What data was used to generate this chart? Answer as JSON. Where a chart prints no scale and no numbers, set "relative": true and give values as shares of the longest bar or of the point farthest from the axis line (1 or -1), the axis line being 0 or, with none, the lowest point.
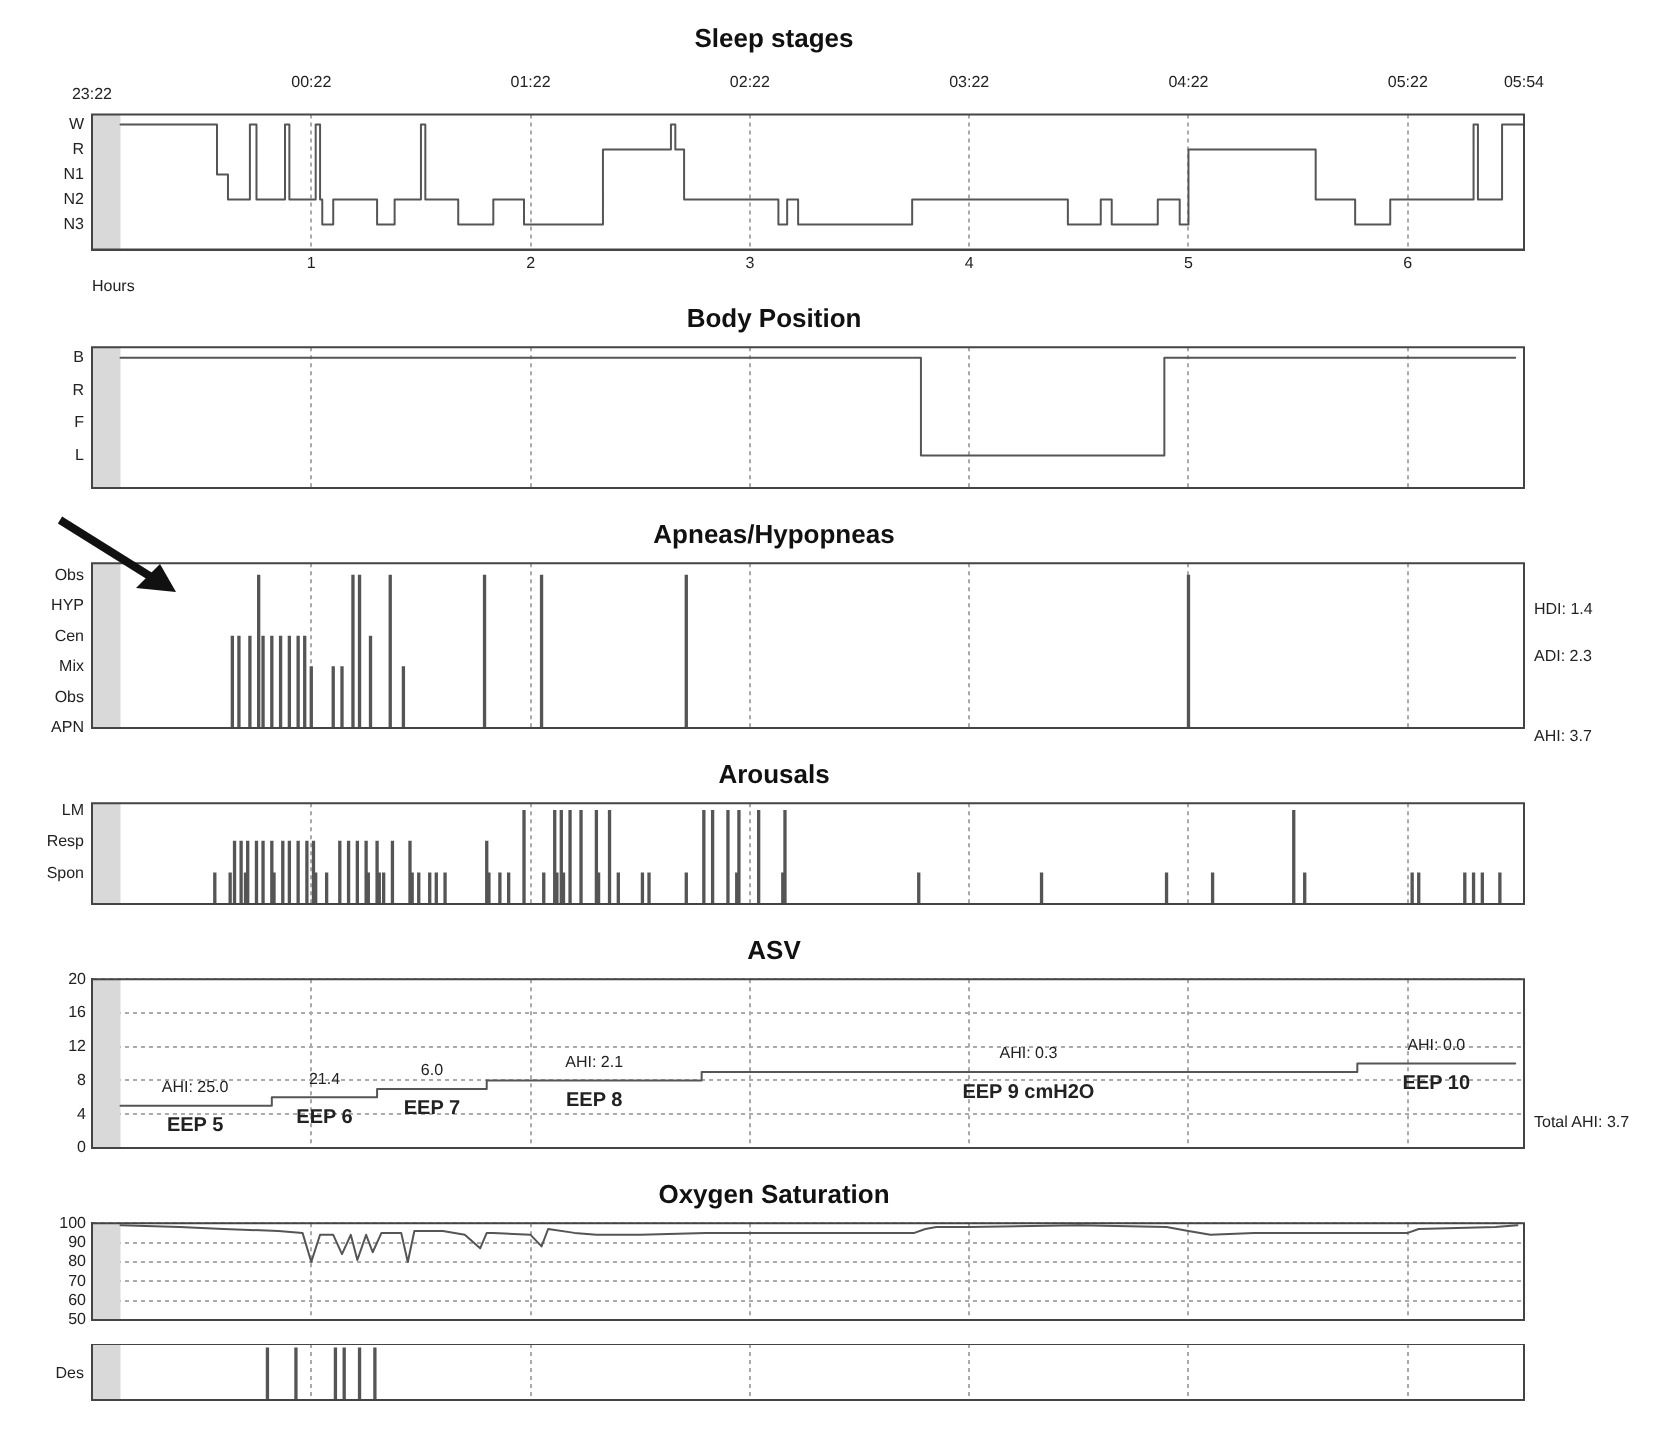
{
  "chart_data": [
    {
      "type": "step",
      "title": "Sleep stages",
      "xlabel": "Hours",
      "xlim": [
        0,
        6.53
      ],
      "xticks": [
        1,
        2,
        3,
        4,
        5,
        6
      ],
      "x2lim": [
        -0.63,
        5.9
      ],
      "x2ticks": [
        {
          "value": 0.37,
          "label": "00:22"
        },
        {
          "value": 1.37,
          "label": "01:22"
        },
        {
          "value": 2.37,
          "label": "02:22"
        },
        {
          "value": 3.37,
          "label": "03:22"
        },
        {
          "value": 4.37,
          "label": "04:22"
        },
        {
          "value": 5.37,
          "label": "05:22"
        },
        {
          "value": 5.9,
          "label": "05:54"
        }
      ],
      "relative": true,
      "grid": "x",
      "bands": [
        {
          "axis": "x",
          "from": 0,
          "to": 0.13,
          "color": "#d9d9d9"
        }
      ],
      "annotations": [
        "W",
        "R",
        "N1",
        "N2",
        "N3",
        "23:22"
      ],
      "series": [
        {
          "color": "#555555",
          "x": [
            0.13,
            0.57,
            0.62,
            0.72,
            0.75,
            0.88,
            0.9,
            1.02,
            1.04,
            1.05,
            1.1,
            1.3,
            1.38,
            1.5,
            1.52,
            1.67,
            1.83,
            1.97,
            2.33,
            2.64,
            2.66,
            2.7,
            3.13,
            3.17,
            3.22,
            3.74,
            4.45,
            4.6,
            4.65,
            4.86,
            4.96,
            5.0,
            5.58,
            5.76,
            5.92,
            6.3,
            6.32,
            6.43,
            6.53
          ],
          "values": [
            1,
            0.6,
            0.4,
            1,
            0.4,
            1,
            0.4,
            1,
            0.4,
            0.2,
            0.4,
            0.2,
            0.4,
            1,
            0.4,
            0.2,
            0.4,
            0.2,
            0.8,
            1,
            0.8,
            0.4,
            0.2,
            0.4,
            0.2,
            0.4,
            0.2,
            0.4,
            0.2,
            0.4,
            0.2,
            0.8,
            0.4,
            0.2,
            0.4,
            1,
            0.4,
            1,
            1
          ]
        }
      ]
    },
    {
      "type": "step",
      "title": "Body Position",
      "xlim": [
        0,
        6.53
      ],
      "xticks": [
        1,
        2,
        3,
        4,
        5,
        6
      ],
      "relative": true,
      "grid": "x",
      "tick_labels": false,
      "bands": [
        {
          "axis": "x",
          "from": 0,
          "to": 0.13,
          "color": "#d9d9d9"
        }
      ],
      "annotations": [
        "B",
        "R",
        "F",
        "L"
      ],
      "series": [
        {
          "color": "#555555",
          "x": [
            0.13,
            3.78,
            4.89,
            6.49
          ],
          "values": [
            1,
            0.25,
            1,
            1
          ]
        }
      ]
    },
    {
      "type": "bar",
      "title": "Apneas/Hypopneas",
      "xlim": [
        0,
        6.53
      ],
      "xticks": [
        1,
        2,
        3,
        4,
        5,
        6
      ],
      "relative": true,
      "grid": "x",
      "tick_labels": false,
      "bands": [
        {
          "axis": "x",
          "from": 0,
          "to": 0.13,
          "color": "#d9d9d9"
        }
      ],
      "annotations": [
        "Obs",
        "HYP",
        "Cen",
        "Mix",
        "Obs",
        "APN",
        "HDI: 1.4",
        "ADI: 2.3",
        "AHI: 3.7"
      ],
      "color": "#555555",
      "x": [
        0.64,
        0.67,
        0.72,
        0.76,
        0.78,
        0.82,
        0.86,
        0.9,
        0.94,
        0.97,
        1.0,
        1.1,
        1.14,
        1.19,
        1.22,
        1.27,
        1.36,
        1.42,
        1.79,
        2.05,
        2.71,
        5.0
      ],
      "values": [
        0.6,
        0.6,
        0.6,
        1,
        0.6,
        0.6,
        0.6,
        0.6,
        0.6,
        0.6,
        0.4,
        0.4,
        0.4,
        1,
        1,
        0.6,
        1,
        0.4,
        1,
        1,
        1,
        1
      ]
    },
    {
      "type": "bar",
      "title": "Arousals",
      "xlim": [
        0,
        6.53
      ],
      "xticks": [
        1,
        2,
        3,
        4,
        5,
        6
      ],
      "relative": true,
      "grid": "x",
      "tick_labels": false,
      "bands": [
        {
          "axis": "x",
          "from": 0,
          "to": 0.13,
          "color": "#d9d9d9"
        }
      ],
      "annotations": [
        "LM",
        "Resp",
        "Spon"
      ],
      "color": "#555555",
      "x": [
        0.56,
        0.63,
        0.65,
        0.68,
        0.7,
        0.71,
        0.75,
        0.78,
        0.82,
        0.83,
        0.87,
        0.9,
        0.94,
        0.98,
        1.01,
        1.02,
        1.07,
        1.13,
        1.17,
        1.21,
        1.25,
        1.26,
        1.3,
        1.31,
        1.33,
        1.37,
        1.45,
        1.46,
        1.49,
        1.54,
        1.57,
        1.61,
        1.8,
        1.81,
        1.86,
        1.9,
        1.97,
        2.06,
        2.11,
        2.12,
        2.14,
        2.15,
        2.18,
        2.23,
        2.3,
        2.31,
        2.36,
        2.4,
        2.51,
        2.54,
        2.71,
        2.79,
        2.83,
        2.9,
        2.94,
        2.95,
        3.04,
        3.15,
        3.16,
        3.77,
        4.33,
        4.9,
        5.11,
        5.48,
        5.53,
        6.02,
        6.05,
        6.26,
        6.3,
        6.34,
        6.42
      ],
      "values": [
        0.33,
        0.33,
        0.67,
        0.67,
        0.33,
        0.67,
        0.67,
        0.67,
        0.67,
        0.33,
        0.67,
        0.67,
        0.67,
        0.67,
        0.67,
        0.33,
        0.33,
        0.67,
        0.67,
        0.67,
        0.67,
        0.33,
        0.67,
        0.33,
        0.33,
        0.67,
        0.67,
        0.33,
        0.33,
        0.33,
        0.33,
        0.33,
        0.67,
        0.33,
        0.33,
        0.33,
        1,
        0.33,
        1,
        0.33,
        1,
        0.33,
        1,
        1,
        1,
        0.33,
        1,
        0.33,
        0.33,
        0.33,
        0.33,
        1,
        1,
        1,
        0.33,
        1,
        1,
        0.33,
        1,
        0.33,
        0.33,
        0.33,
        0.33,
        1,
        0.33,
        0.33,
        0.33,
        0.33,
        0.33,
        0.33,
        0.33
      ]
    },
    {
      "type": "step",
      "title": "ASV",
      "xlim": [
        0,
        6.53
      ],
      "xticks": [
        1,
        2,
        3,
        4,
        5,
        6
      ],
      "ylim": [
        0,
        20
      ],
      "yticks": [
        0,
        4,
        8,
        12,
        16,
        20
      ],
      "grid": true,
      "tick_labels": "y",
      "bands": [
        {
          "axis": "x",
          "from": 0,
          "to": 0.13,
          "color": "#d9d9d9"
        }
      ],
      "annotations": [
        {
          "text": "AHI: 25.0",
          "x": 0.47,
          "y": 5
        },
        {
          "text": "EEP 5",
          "x": 0.47,
          "y": 5
        },
        {
          "text": "21.4",
          "x": 1.06,
          "y": 6
        },
        {
          "text": "EEP 6",
          "x": 1.06,
          "y": 6
        },
        {
          "text": "6.0",
          "x": 1.55,
          "y": 7
        },
        {
          "text": "EEP 7",
          "x": 1.55,
          "y": 7
        },
        {
          "text": "AHI: 2.1",
          "x": 2.29,
          "y": 8
        },
        {
          "text": "EEP 8",
          "x": 2.29,
          "y": 8
        },
        {
          "text": "AHI: 0.3",
          "x": 4.27,
          "y": 9
        },
        {
          "text": "EEP 9 cmH2O",
          "x": 4.27,
          "y": 9
        },
        {
          "text": "AHI: 0.0",
          "x": 6.13,
          "y": 10
        },
        {
          "text": "EEP 10",
          "x": 6.13,
          "y": 10
        },
        "Total AHI: 3.7"
      ],
      "series": [
        {
          "color": "#555555",
          "x": [
            0.13,
            0.82,
            1.3,
            1.8,
            2.78,
            5.77,
            6.49
          ],
          "values": [
            5,
            6,
            7,
            8,
            9,
            10,
            10
          ]
        }
      ]
    },
    {
      "type": "line",
      "title": "Oxygen Saturation",
      "xlim": [
        0,
        6.53
      ],
      "xticks": [
        1,
        2,
        3,
        4,
        5,
        6
      ],
      "ylim": [
        50,
        100
      ],
      "yticks": [
        50,
        60,
        70,
        80,
        90,
        100
      ],
      "grid": true,
      "tick_labels": "y",
      "bands": [
        {
          "axis": "x",
          "from": 0,
          "to": 0.13,
          "color": "#d9d9d9"
        }
      ],
      "series": [
        {
          "color": "#555555",
          "x": [
            0.13,
            0.4,
            0.6,
            0.85,
            0.96,
            1.0,
            1.04,
            1.1,
            1.14,
            1.18,
            1.21,
            1.25,
            1.28,
            1.32,
            1.41,
            1.44,
            1.47,
            1.6,
            1.7,
            1.77,
            1.8,
            1.83,
            2.0,
            2.05,
            2.08,
            2.2,
            2.3,
            2.5,
            2.8,
            3.0,
            3.5,
            3.75,
            3.8,
            3.85,
            4.0,
            4.5,
            4.9,
            5.0,
            5.1,
            5.3,
            5.8,
            6.0,
            6.05,
            6.4,
            6.5
          ],
          "values": [
            99,
            98,
            97,
            96,
            95,
            80,
            94,
            94,
            84,
            94,
            81,
            94,
            85,
            95,
            95,
            80,
            96,
            96,
            94,
            87,
            95,
            95,
            94,
            88,
            97,
            95,
            94,
            94,
            95,
            95,
            95,
            95,
            97,
            98,
            98,
            99,
            98,
            96,
            94,
            95,
            95,
            95,
            97,
            98,
            99
          ]
        }
      ]
    },
    {
      "type": "bar",
      "xlim": [
        0,
        6.53
      ],
      "xticks": [
        1,
        2,
        3,
        4,
        5,
        6
      ],
      "relative": true,
      "grid": "x",
      "tick_labels": false,
      "bands": [
        {
          "axis": "x",
          "from": 0,
          "to": 0.13,
          "color": "#d9d9d9"
        }
      ],
      "annotations": [
        "Des"
      ],
      "color": "#555555",
      "x": [
        0.8,
        0.93,
        1.11,
        1.15,
        1.22,
        1.29
      ],
      "values": [
        1,
        1,
        1,
        1,
        1,
        1
      ]
    }
  ]
}
